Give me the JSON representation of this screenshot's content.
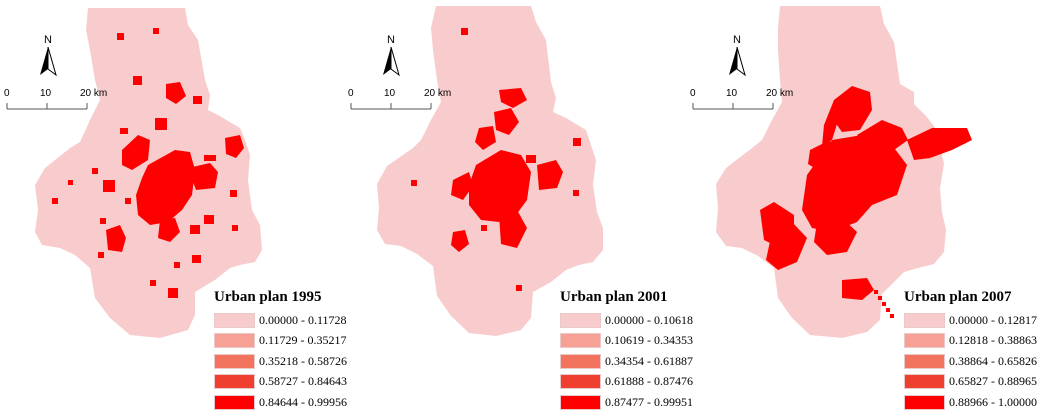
{
  "colors": {
    "background_region": "#f8cccc",
    "urban": "#ff0000",
    "legend": [
      "#f8cccc",
      "#f6a096",
      "#f2735e",
      "#ee3f2f",
      "#ff0000"
    ]
  },
  "north_arrow": {
    "label": "N"
  },
  "scale_bar": {
    "labels": [
      "0",
      "10",
      "20 km"
    ]
  },
  "panels": [
    {
      "id": "1995",
      "legend": {
        "title": "Urban plan 1995",
        "classes": [
          "0.00000 - 0.11728",
          "0.11729 - 0.35217",
          "0.35218 - 0.58726",
          "0.58727 - 0.84643",
          "0.84644 - 0.99956"
        ]
      }
    },
    {
      "id": "2001",
      "legend": {
        "title": "Urban plan 2001",
        "classes": [
          "0.00000 - 0.10618",
          "0.10619 - 0.34353",
          "0.34354 - 0.61887",
          "0.61888 - 0.87476",
          "0.87477 - 0.99951"
        ]
      }
    },
    {
      "id": "2007",
      "legend": {
        "title": "Urban plan 2007",
        "classes": [
          "0.00000 - 0.12817",
          "0.12818 - 0.38863",
          "0.38864 - 0.65826",
          "0.65827 - 0.88965",
          "0.88966 - 1.00000"
        ]
      }
    }
  ]
}
